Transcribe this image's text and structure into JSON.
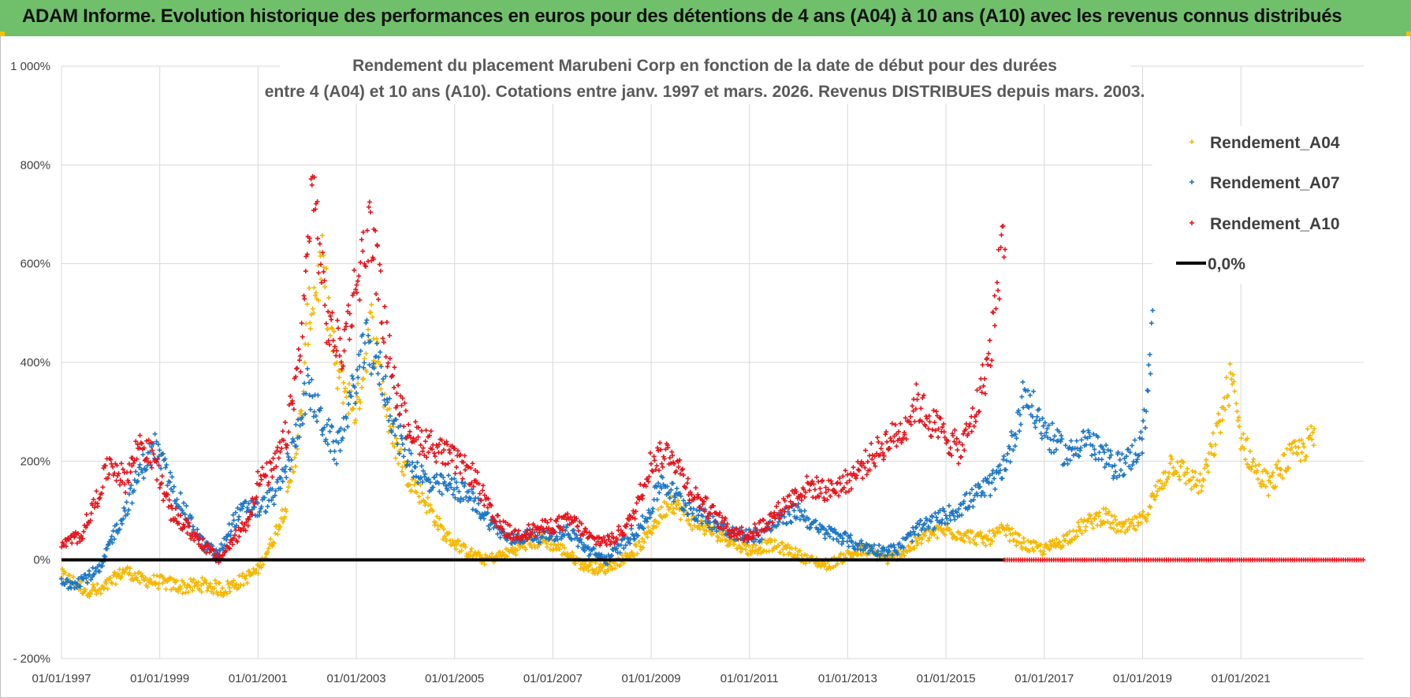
{
  "banner_title": "ADAM Informe. Evolution historique des performances en euros pour des détentions de 4 ans (A04) à 10 ans (A10) avec les revenus connus distribués",
  "chart_data": {
    "type": "scatter",
    "title_line1": "Rendement du placement Marubeni Corp en fonction de la date de début pour des durées",
    "title_line2": "entre 4 (A04) et 10 ans (A10). Cotations entre janv. 1997 et mars. 2026. Revenus DISTRIBUES depuis mars. 2003.",
    "xlabel": "",
    "ylabel": "",
    "x_range": [
      1997.0,
      2023.5
    ],
    "ylim": [
      -200,
      1000
    ],
    "y_ticks": [
      -200,
      0,
      200,
      400,
      600,
      800,
      1000
    ],
    "y_tick_labels": [
      "- 200%",
      "0%",
      "200%",
      "400%",
      "600%",
      "800%",
      "1 000%"
    ],
    "x_ticks": [
      1997,
      1999,
      2001,
      2003,
      2005,
      2007,
      2009,
      2011,
      2013,
      2015,
      2017,
      2019,
      2021
    ],
    "x_tick_labels": [
      "01/01/1997",
      "01/01/1999",
      "01/01/2001",
      "01/01/2003",
      "01/01/2005",
      "01/01/2007",
      "01/01/2009",
      "01/01/2011",
      "01/01/2013",
      "01/01/2015",
      "01/01/2017",
      "01/01/2019",
      "01/01/2021"
    ],
    "grid": true,
    "legend_position": "top-right",
    "series": [
      {
        "name": "Rendement_A04",
        "color": "#f5b800",
        "marker": "cross",
        "x": [
          1997.0,
          1997.4,
          1997.8,
          1998.0,
          1998.3,
          1998.6,
          1999.0,
          1999.5,
          1999.9,
          2000.3,
          2000.7,
          2001.0,
          2001.3,
          2001.6,
          2001.9,
          2002.0,
          2002.3,
          2002.6,
          2003.0,
          2003.3,
          2003.7,
          2004.0,
          2004.4,
          2004.8,
          2005.2,
          2005.6,
          2006.0,
          2006.4,
          2006.8,
          2007.2,
          2007.6,
          2008.0,
          2008.4,
          2008.8,
          2009.1,
          2009.4,
          2009.8,
          2010.2,
          2010.6,
          2011.0,
          2011.4,
          2011.8,
          2012.2,
          2012.6,
          2013.0,
          2013.4,
          2013.8,
          2014.2,
          2014.6,
          2015.0,
          2015.4,
          2015.8,
          2016.2,
          2016.6,
          2017.0,
          2017.4,
          2017.8,
          2018.2,
          2018.6,
          2019.0,
          2019.3,
          2019.6,
          2019.9,
          2020.2,
          2020.5,
          2020.8,
          2021.0,
          2021.3,
          2021.6,
          2021.9,
          2022.2,
          2022.5
        ],
        "y": [
          -30,
          -55,
          -65,
          -45,
          -20,
          -40,
          -45,
          -55,
          -50,
          -60,
          -40,
          -20,
          40,
          120,
          300,
          480,
          600,
          380,
          300,
          480,
          260,
          180,
          120,
          50,
          20,
          0,
          10,
          30,
          40,
          20,
          -10,
          -20,
          0,
          30,
          80,
          120,
          80,
          60,
          40,
          20,
          30,
          20,
          0,
          -10,
          10,
          20,
          0,
          20,
          50,
          60,
          50,
          40,
          60,
          30,
          20,
          40,
          70,
          90,
          60,
          80,
          140,
          200,
          170,
          150,
          250,
          370,
          250,
          180,
          150,
          200,
          220,
          250
        ]
      },
      {
        "name": "Rendement_A07",
        "color": "#1f77c4",
        "marker": "cross",
        "x": [
          1997.0,
          1997.4,
          1997.8,
          1998.0,
          1998.3,
          1998.6,
          1998.9,
          1999.2,
          1999.6,
          1999.9,
          2000.2,
          2000.5,
          2000.8,
          2001.0,
          2001.4,
          2001.7,
          2002.0,
          2002.3,
          2002.6,
          2002.9,
          2003.2,
          2003.5,
          2003.8,
          2004.1,
          2004.5,
          2004.9,
          2005.3,
          2005.7,
          2006.1,
          2006.5,
          2006.9,
          2007.3,
          2007.7,
          2008.1,
          2008.5,
          2008.9,
          2009.2,
          2009.6,
          2010.0,
          2010.4,
          2010.8,
          2011.2,
          2011.6,
          2012.0,
          2012.4,
          2012.8,
          2013.2,
          2013.6,
          2014.0,
          2014.4,
          2014.8,
          2015.2,
          2015.6,
          2016.0,
          2016.3,
          2016.6,
          2016.9,
          2017.2,
          2017.5,
          2017.8,
          2018.1,
          2018.4,
          2018.7,
          2019.0,
          2019.2
        ],
        "y": [
          -50,
          -40,
          -20,
          40,
          100,
          180,
          230,
          160,
          80,
          30,
          10,
          80,
          110,
          100,
          140,
          220,
          350,
          280,
          220,
          330,
          440,
          380,
          260,
          200,
          150,
          150,
          130,
          80,
          40,
          50,
          50,
          60,
          20,
          0,
          40,
          80,
          160,
          120,
          90,
          70,
          50,
          50,
          80,
          100,
          60,
          50,
          30,
          20,
          20,
          60,
          80,
          100,
          130,
          160,
          220,
          340,
          280,
          240,
          210,
          250,
          220,
          190,
          200,
          240,
          460
        ]
      },
      {
        "name": "Rendement_A10",
        "color": "#e8141c",
        "marker": "cross",
        "x": [
          1997.0,
          1997.4,
          1997.7,
          1998.0,
          1998.3,
          1998.6,
          1998.9,
          1999.2,
          1999.6,
          1999.9,
          2000.2,
          2000.5,
          2000.8,
          2001.0,
          2001.3,
          2001.6,
          2001.9,
          2002.1,
          2002.4,
          2002.7,
          2003.0,
          2003.3,
          2003.6,
          2003.9,
          2004.2,
          2004.6,
          2005.0,
          2005.4,
          2005.8,
          2006.2,
          2006.6,
          2007.0,
          2007.4,
          2007.8,
          2008.2,
          2008.6,
          2009.0,
          2009.4,
          2009.8,
          2010.2,
          2010.6,
          2011.0,
          2011.4,
          2011.8,
          2012.2,
          2012.6,
          2013.0,
          2013.4,
          2013.8,
          2014.1,
          2014.4,
          2014.7,
          2015.0,
          2015.3,
          2015.6,
          2015.9,
          2016.1,
          2016.2
        ],
        "y": [
          30,
          50,
          120,
          200,
          160,
          240,
          200,
          100,
          60,
          30,
          0,
          40,
          80,
          160,
          180,
          260,
          450,
          780,
          480,
          420,
          560,
          680,
          450,
          300,
          250,
          230,
          200,
          170,
          80,
          50,
          60,
          70,
          80,
          40,
          40,
          80,
          200,
          220,
          140,
          100,
          60,
          50,
          80,
          120,
          150,
          140,
          160,
          200,
          240,
          260,
          320,
          280,
          250,
          220,
          300,
          420,
          600,
          680
        ]
      },
      {
        "name": "0,0%",
        "color": "#000000",
        "marker": "line",
        "x": [
          1997.0,
          2016.2
        ],
        "y": [
          0,
          0
        ]
      }
    ],
    "red_zero_band": {
      "x_start": 2016.2,
      "x_end": 2023.5,
      "y": 0
    }
  }
}
